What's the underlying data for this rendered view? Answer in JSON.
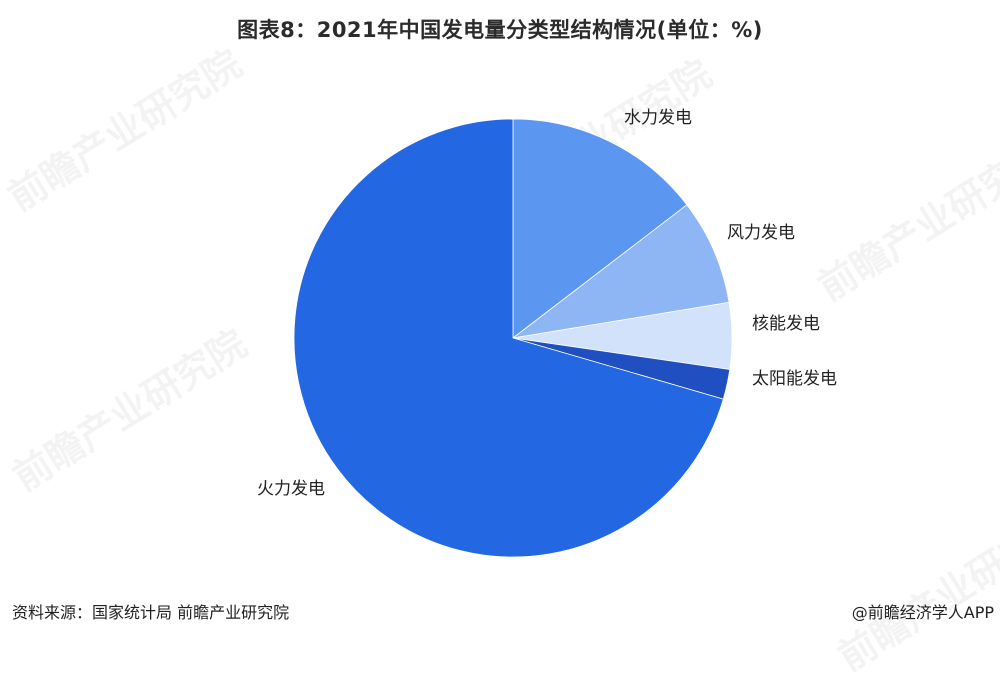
{
  "header": {
    "title": "图表8：2021年中国发电量分类型结构情况(单位：%)"
  },
  "watermark": {
    "text": "前瞻产业研究院"
  },
  "footer": {
    "source": "资料来源：国家统计局 前瞻产业研究院",
    "credit": "@前瞻经济学人APP"
  },
  "chart_data": {
    "type": "pie",
    "title": "图表8：2021年中国发电量分类型结构情况(单位：%)",
    "unit": "%",
    "start_angle": "12 o'clock",
    "direction": "clockwise",
    "slices": [
      {
        "label": "水力发电",
        "value": 14.6,
        "color": "#5b96f0"
      },
      {
        "label": "风力发电",
        "value": 7.8,
        "color": "#8eb6f5"
      },
      {
        "label": "核能发电",
        "value": 4.9,
        "color": "#d3e2fb"
      },
      {
        "label": "太阳能发电",
        "value": 2.2,
        "color": "#1f4fc0"
      },
      {
        "label": "火力发电",
        "value": 70.5,
        "color": "#2367e2"
      }
    ]
  }
}
